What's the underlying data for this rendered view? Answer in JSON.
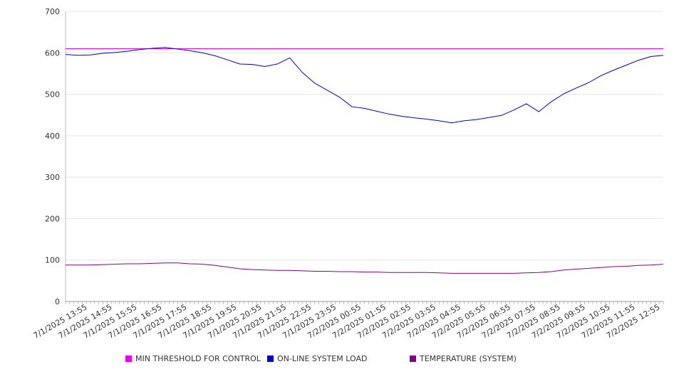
{
  "chart_data": {
    "type": "line",
    "title": "",
    "xlabel": "",
    "ylabel": "",
    "ylim": [
      0,
      700
    ],
    "y_ticks": [
      0,
      100,
      200,
      300,
      400,
      500,
      600,
      700
    ],
    "grid": "horizontal",
    "legend_placement": "bottom",
    "x_tick_labels": [
      "7/1/2025 13:55",
      "7/1/2025 14:55",
      "7/1/2025 15:55",
      "7/1/2025 16:55",
      "7/1/2025 17:55",
      "7/1/2025 18:55",
      "7/1/2025 19:55",
      "7/1/2025 20:55",
      "7/1/2025 21:55",
      "7/1/2025 22:55",
      "7/1/2025 23:55",
      "7/2/2025 00:55",
      "7/2/2025 01:55",
      "7/2/2025 02:55",
      "7/2/2025 03:55",
      "7/2/2025 04:55",
      "7/2/2025 05:55",
      "7/2/2025 06:55",
      "7/2/2025 07:55",
      "7/2/2025 08:55",
      "7/2/2025 09:55",
      "7/2/2025 10:55",
      "7/2/2025 11:55",
      "7/2/2025 12:55"
    ],
    "series": [
      {
        "name": "MIN THRESHOLD FOR CONTROL",
        "color": "#ee00ee",
        "values": [
          610,
          610,
          610,
          610,
          610,
          610,
          610,
          610,
          610,
          610,
          610,
          610,
          610,
          610,
          610,
          610,
          610,
          610,
          610,
          610,
          610,
          610,
          610,
          610,
          610,
          610,
          610,
          610,
          610,
          610,
          610,
          610,
          610,
          610,
          610,
          610,
          610,
          610,
          610,
          610,
          610,
          610,
          610,
          610,
          610,
          610,
          610,
          610,
          610
        ]
      },
      {
        "name": "ON-LINE SYSTEM LOAD",
        "color": "#0000dd",
        "values": [
          596,
          594,
          595,
          599,
          601,
          604,
          608,
          611,
          613,
          609,
          605,
          600,
          593,
          583,
          573,
          572,
          567,
          573,
          588,
          553,
          527,
          510,
          493,
          470,
          466,
          459,
          452,
          447,
          443,
          440,
          436,
          431,
          436,
          439,
          444,
          449,
          462,
          477,
          458,
          482,
          501,
          515,
          528,
          545,
          558,
          570,
          582,
          591,
          594
        ]
      },
      {
        "name": "TEMPERATURE (SYSTEM)",
        "color": "#880088",
        "values": [
          88,
          88,
          88,
          89,
          90,
          91,
          91,
          92,
          93,
          93,
          91,
          90,
          87,
          83,
          79,
          77,
          76,
          75,
          75,
          74,
          73,
          73,
          72,
          72,
          71,
          71,
          70,
          70,
          70,
          70,
          69,
          68,
          68,
          68,
          68,
          68,
          68,
          69,
          70,
          72,
          76,
          78,
          80,
          82,
          84,
          85,
          87,
          88,
          90
        ]
      }
    ]
  }
}
